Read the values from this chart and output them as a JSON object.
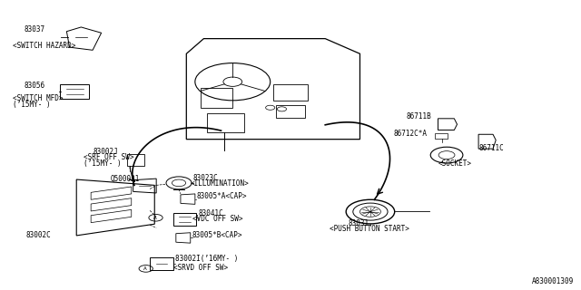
{
  "title": "",
  "bg_color": "#ffffff",
  "text_color": "#000000",
  "line_color": "#000000",
  "fig_width": 6.4,
  "fig_height": 3.2,
  "dpi": 100,
  "watermark": "A830001309",
  "label_83037": "83037",
  "label_sw_hazard": "<SWITCH HAZARD>",
  "label_83056": "83056",
  "label_sw_mfd": "<SWITCH MFD>",
  "label_15my1": "(’15MY- )",
  "label_83002J": "83002J",
  "label_srf": "<SRF OFF SW>",
  "label_15my2": "(’15MY- )",
  "label_Q500031": "Q500031",
  "label_83023C": "83023C",
  "label_illumination": "<ILLUMINATION>",
  "label_83005A": "83005*A<CAP>",
  "label_83041C": "83041C",
  "label_vdc": "<VDC OFF SW>",
  "label_83005B": "83005*B<CAP>",
  "label_83002C": "83002C",
  "label_83002I": "83002I(’16MY- )",
  "label_srvd": "<SRVD OFF SW>",
  "label_86711B": "86711B",
  "label_86712CA": "86712C*A",
  "label_86711C": "86711C",
  "label_socket": "<SOCKET>",
  "label_83031": "83031",
  "label_push": "<PUSH BUTTON START>"
}
